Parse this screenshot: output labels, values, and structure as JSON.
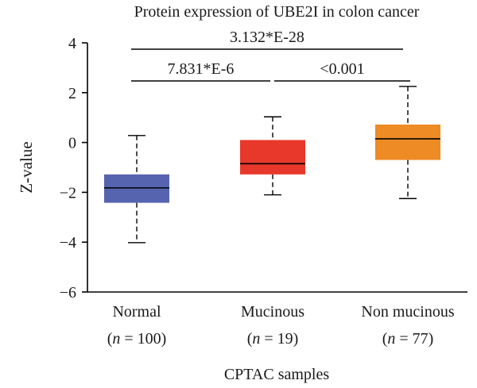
{
  "chart_data": {
    "type": "box",
    "title": "Protein expression of UBE2I in colon cancer",
    "xlabel": "CPTAC samples",
    "ylabel": "Z-value",
    "ylim": [
      -6,
      4
    ],
    "yticks": [
      4,
      2,
      0,
      -2,
      -4,
      -6
    ],
    "ytick_labels": [
      "4",
      "2",
      "0",
      "−2",
      "−4",
      "−6"
    ],
    "categories": [
      {
        "name": "Normal",
        "n_label": "= 100"
      },
      {
        "name": "Mucinous",
        "n_label": "= 19"
      },
      {
        "name": "Non mucinous",
        "n_label": "= 77"
      }
    ],
    "n_symbol": "n",
    "boxes": [
      {
        "whisker_low": -4.02,
        "q1": -2.42,
        "median": -1.82,
        "q3": -1.28,
        "whisker_high": 0.28,
        "color": "#5663AF"
      },
      {
        "whisker_low": -2.1,
        "q1": -1.28,
        "median": -0.85,
        "q3": 0.1,
        "whisker_high": 1.03,
        "color": "#E8372B"
      },
      {
        "whisker_low": -2.25,
        "q1": -0.7,
        "median": 0.15,
        "q3": 0.72,
        "whisker_high": 2.25,
        "color": "#EE8B25"
      }
    ],
    "comparisons": [
      {
        "label": "3.132*E-28",
        "from": 0,
        "to": 2
      },
      {
        "label": "7.831*E-6",
        "from": 0,
        "to": 1
      },
      {
        "label": "<0.001",
        "from": 1,
        "to": 2
      }
    ],
    "grid": false
  }
}
